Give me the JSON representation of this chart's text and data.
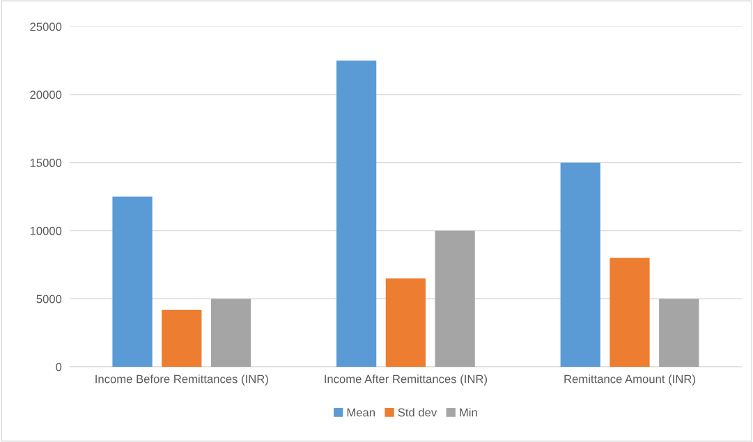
{
  "chart_data": {
    "type": "bar",
    "categories": [
      "Income Before Remittances (INR)",
      "Income After Remittances (INR)",
      "Remittance Amount (INR)"
    ],
    "series": [
      {
        "name": "Mean",
        "color": "#5b9bd5",
        "values": [
          12500,
          22500,
          15000
        ]
      },
      {
        "name": "Std dev",
        "color": "#ed7d31",
        "values": [
          4200,
          6500,
          8000
        ]
      },
      {
        "name": "Min",
        "color": "#a5a5a5",
        "values": [
          5000,
          10000,
          5000
        ]
      }
    ],
    "ylim": [
      0,
      25000
    ],
    "yticks": [
      0,
      5000,
      10000,
      15000,
      20000,
      25000
    ],
    "grid": "y",
    "legend": "bottom"
  }
}
